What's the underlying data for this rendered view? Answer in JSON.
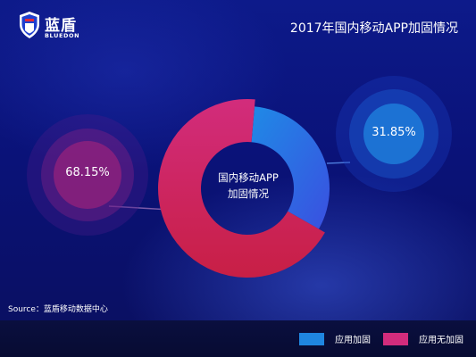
{
  "brand": {
    "name": "蓝盾",
    "sub": "BLUEDON"
  },
  "title": "2017年国内移动APP加固情况",
  "source": "Source：蓝盾移动数据中心",
  "colors": {
    "secured": "#1f86e0",
    "unsecured": "#d22c7c"
  },
  "chart_data": {
    "type": "pie",
    "title": "2017年国内移动APP加固情况",
    "center_label_lines": [
      "国内移动APP",
      "加固情况"
    ],
    "categories": [
      "应用加固",
      "应用无加固"
    ],
    "values": [
      31.85,
      68.15
    ],
    "value_labels": [
      "31.85%",
      "68.15%"
    ],
    "legend_position": "bottom-right"
  }
}
